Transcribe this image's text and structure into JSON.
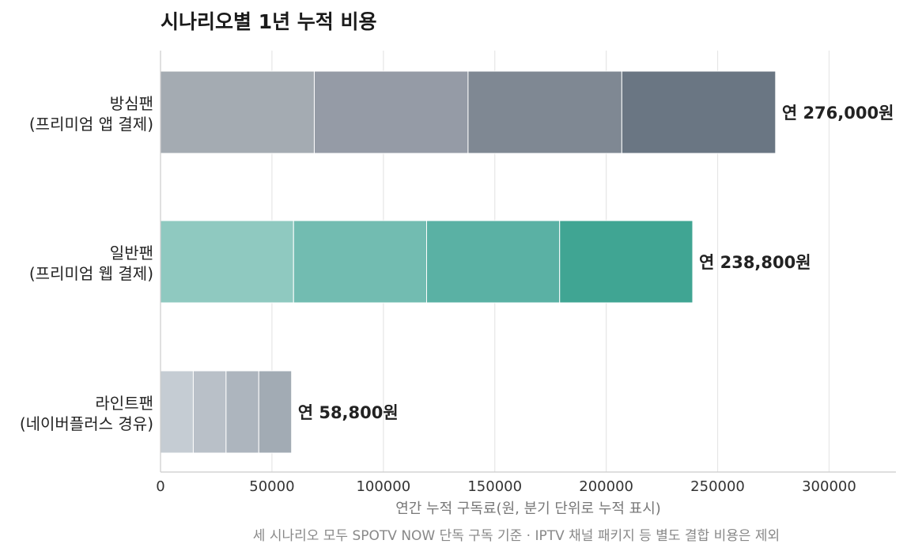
{
  "chart_data": {
    "type": "bar",
    "orientation": "horizontal",
    "stacked": true,
    "title": "시나리오별 1년 누적 비용",
    "xlabel": "연간 누적 구독료(원, 분기 단위로 누적 표시)",
    "caption": "세 시나리오 모두 SPOTV NOW 단독 구독 기준 · IPTV 채널 패키지 등 별도 결합 비용은 제외",
    "xlim": [
      0,
      330000
    ],
    "xticks": [
      0,
      50000,
      100000,
      150000,
      200000,
      250000,
      300000
    ],
    "xtick_labels": [
      "0",
      "50000",
      "100000",
      "150000",
      "200000",
      "250000",
      "300000"
    ],
    "grid": "vertical",
    "categories": [
      {
        "label_line1": "방심팬",
        "label_line2": "(프리미엄 앱 결제)",
        "segments": [
          69000,
          69000,
          69000,
          69000
        ],
        "total_label": "연 276,000원",
        "colors": [
          "#a4abb2",
          "#959ba6",
          "#7f8893",
          "#6a7683"
        ]
      },
      {
        "label_line1": "일반팬",
        "label_line2": "(프리미엄 웹 결제)",
        "segments": [
          59700,
          59700,
          59700,
          59700
        ],
        "total_label": "연 238,800원",
        "colors": [
          "#8fc9c0",
          "#72bcb1",
          "#5ab1a4",
          "#40a593"
        ]
      },
      {
        "label_line1": "라인트팬",
        "label_line2": "(네이버플러스 경유)",
        "segments": [
          14700,
          14700,
          14700,
          14700
        ],
        "total_label": "연 58,800원",
        "colors": [
          "#c5ccd3",
          "#b9c0c8",
          "#adb5be",
          "#a2abb4"
        ]
      }
    ]
  }
}
